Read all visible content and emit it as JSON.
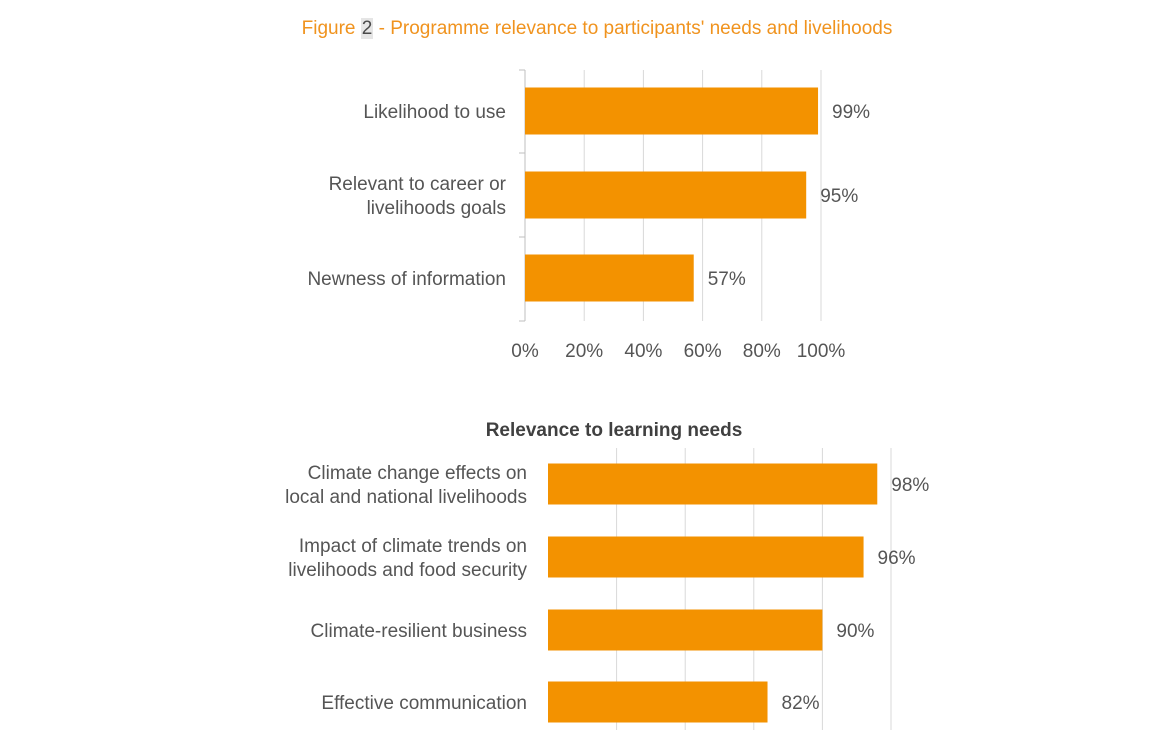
{
  "figure": {
    "prefix": "Figure ",
    "number": "2",
    "suffix": " - Programme relevance to participants' needs and livelihoods"
  },
  "colors": {
    "bar": "#f39200",
    "caption": "#f0931e",
    "grid": "#d9d9d9",
    "text": "#555555"
  },
  "chart_data": [
    {
      "type": "bar",
      "orientation": "horizontal",
      "title": "",
      "categories": [
        [
          "Likelihood to use"
        ],
        [
          "Relevant to career or",
          "livelihoods goals"
        ],
        [
          "Newness of information"
        ]
      ],
      "values": [
        99,
        95,
        57
      ],
      "value_labels": [
        "99%",
        "95%",
        "57%"
      ],
      "xlim": [
        0,
        100
      ],
      "xticks": [
        "0%",
        "20%",
        "40%",
        "60%",
        "80%",
        "100%"
      ],
      "grid": true
    },
    {
      "type": "bar",
      "orientation": "horizontal",
      "title": "Relevance to learning needs",
      "categories": [
        [
          "Climate change effects on",
          "local and national livelihoods"
        ],
        [
          "Impact of climate trends on",
          "livelihoods and food security"
        ],
        [
          "Climate-resilient business"
        ],
        [
          "Effective communication"
        ]
      ],
      "values": [
        98,
        96,
        90,
        82
      ],
      "value_labels": [
        "98%",
        "96%",
        "90%",
        "82%"
      ],
      "xlim": [
        50,
        100
      ],
      "xticks": [],
      "grid": true
    }
  ]
}
